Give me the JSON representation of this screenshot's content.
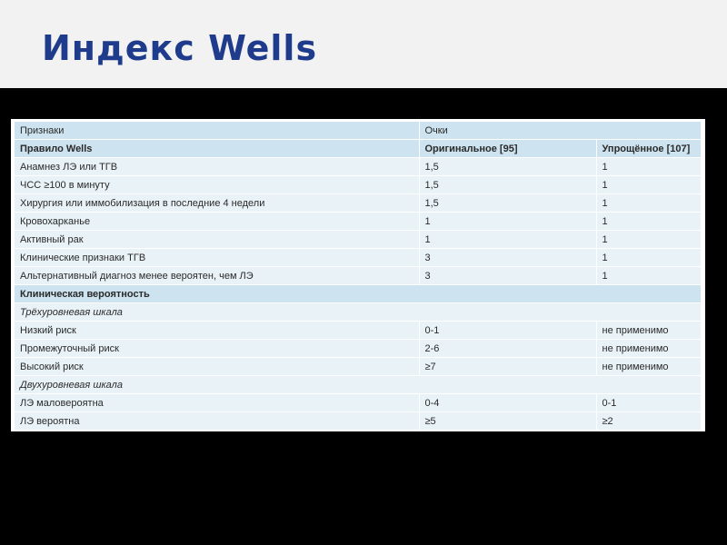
{
  "title": "Индекс Wells",
  "table": {
    "header": {
      "col1": "Признаки",
      "col2": "Очки"
    },
    "subheader": {
      "col1": "Правило Wells",
      "col2": "Оригинальное [95]",
      "col3": "Упрощённое [107]"
    },
    "criteria": [
      {
        "label": "Анамнез ЛЭ или ТГВ",
        "orig": "1,5",
        "simple": "1"
      },
      {
        "label": "ЧСС ≥100 в минуту",
        "orig": "1,5",
        "simple": "1"
      },
      {
        "label": "Хирургия или иммобилизация в последние 4 недели",
        "orig": "1,5",
        "simple": "1"
      },
      {
        "label": "Кровохарканье",
        "orig": "1",
        "simple": "1"
      },
      {
        "label": "Активный рак",
        "orig": "1",
        "simple": "1"
      },
      {
        "label": "Клинические признаки ТГВ",
        "orig": "3",
        "simple": "1"
      },
      {
        "label": "Альтернативный диагноз менее вероятен, чем ЛЭ",
        "orig": "3",
        "simple": "1"
      }
    ],
    "section_title": "Клиническая вероятность",
    "three_level": {
      "title": "Трёхуровневая шкала",
      "rows": [
        {
          "label": "Низкий риск",
          "orig": "0-1",
          "simple": "не применимо"
        },
        {
          "label": "Промежуточный риск",
          "orig": "2-6",
          "simple": "не применимо"
        },
        {
          "label": "Высокий риск",
          "orig": "≥7",
          "simple": "не применимо"
        }
      ]
    },
    "two_level": {
      "title": "Двухуровневая шкала",
      "rows": [
        {
          "label": "ЛЭ маловероятна",
          "orig": "0-4",
          "simple": "0-1"
        },
        {
          "label": "ЛЭ вероятна",
          "orig": "≥5",
          "simple": "≥2"
        }
      ]
    }
  }
}
